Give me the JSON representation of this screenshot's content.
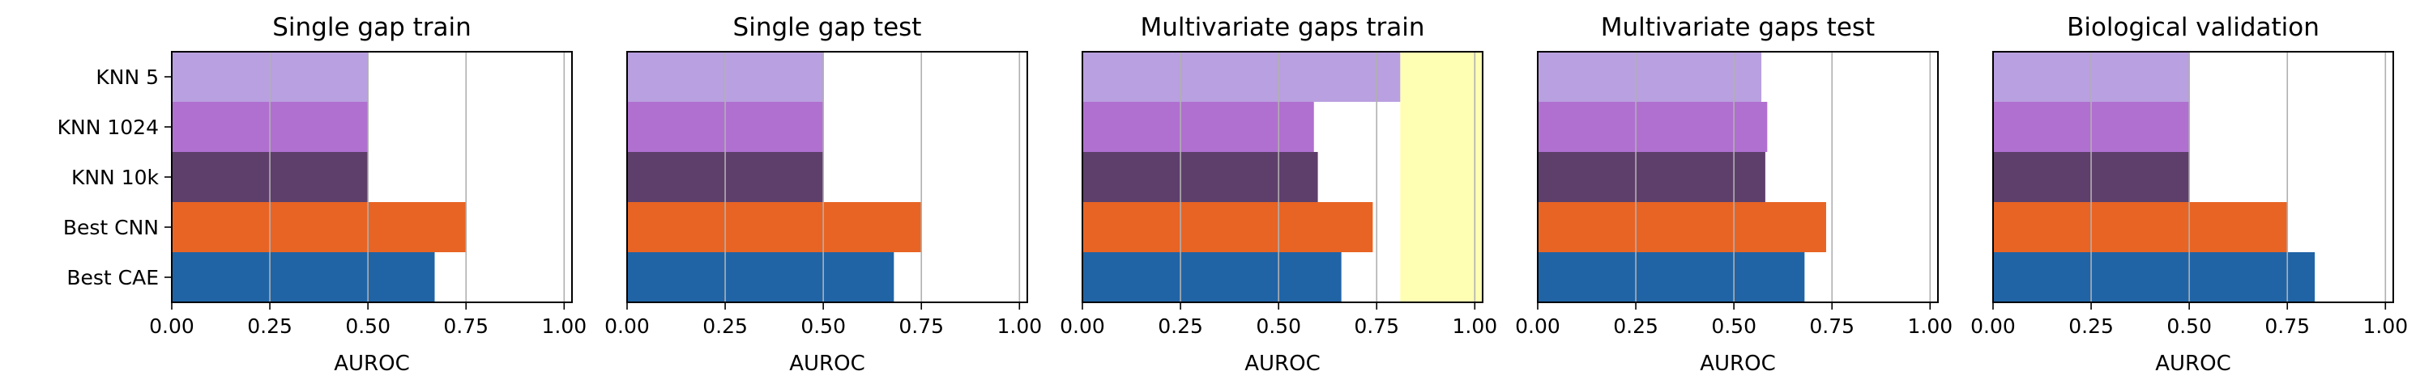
{
  "chart_data": [
    {
      "type": "bar",
      "orientation": "horizontal",
      "title": "Single gap train",
      "xlabel": "AUROC",
      "categories": [
        "KNN 5",
        "KNN 1024",
        "KNN 10k",
        "Best CNN",
        "Best CAE"
      ],
      "values": [
        0.5,
        0.5,
        0.5,
        0.75,
        0.67
      ],
      "xlim": [
        0,
        1.02
      ],
      "xticks": [
        "0.00",
        "0.25",
        "0.50",
        "0.75",
        "1.00"
      ],
      "grid": "vertical",
      "highlight": null
    },
    {
      "type": "bar",
      "orientation": "horizontal",
      "title": "Single gap test",
      "xlabel": "AUROC",
      "categories": [
        "KNN 5",
        "KNN 1024",
        "KNN 10k",
        "Best CNN",
        "Best CAE"
      ],
      "values": [
        0.5,
        0.5,
        0.5,
        0.75,
        0.68
      ],
      "xlim": [
        0,
        1.02
      ],
      "xticks": [
        "0.00",
        "0.25",
        "0.50",
        "0.75",
        "1.00"
      ],
      "grid": "vertical",
      "highlight": null
    },
    {
      "type": "bar",
      "orientation": "horizontal",
      "title": "Multivariate gaps train",
      "xlabel": "AUROC",
      "categories": [
        "KNN 5",
        "KNN 1024",
        "KNN 10k",
        "Best CNN",
        "Best CAE"
      ],
      "values": [
        0.81,
        0.59,
        0.6,
        0.74,
        0.66
      ],
      "xlim": [
        0,
        1.02
      ],
      "xticks": [
        "0.00",
        "0.25",
        "0.50",
        "0.75",
        "1.00"
      ],
      "grid": "vertical",
      "highlight": "#ffffb3"
    },
    {
      "type": "bar",
      "orientation": "horizontal",
      "title": "Multivariate gaps test",
      "xlabel": "AUROC",
      "categories": [
        "KNN 5",
        "KNN 1024",
        "KNN 10k",
        "Best CNN",
        "Best CAE"
      ],
      "values": [
        0.57,
        0.585,
        0.58,
        0.735,
        0.68
      ],
      "xlim": [
        0,
        1.02
      ],
      "xticks": [
        "0.00",
        "0.25",
        "0.50",
        "0.75",
        "1.00"
      ],
      "grid": "vertical",
      "highlight": null
    },
    {
      "type": "bar",
      "orientation": "horizontal",
      "title": "Biological validation",
      "xlabel": "AUROC",
      "categories": [
        "KNN 5",
        "KNN 1024",
        "KNN 10k",
        "Best CNN",
        "Best CAE"
      ],
      "values": [
        0.5,
        0.5,
        0.5,
        0.75,
        0.82
      ],
      "xlim": [
        0,
        1.02
      ],
      "xticks": [
        "0.00",
        "0.25",
        "0.50",
        "0.75",
        "1.00"
      ],
      "grid": "vertical",
      "highlight": null
    }
  ],
  "colors": {
    "KNN 5": "#b9a0e0",
    "KNN 1024": "#b070d0",
    "KNN 10k": "#5e3f6b",
    "Best CNN": "#e86424",
    "Best CAE": "#2064a6"
  }
}
